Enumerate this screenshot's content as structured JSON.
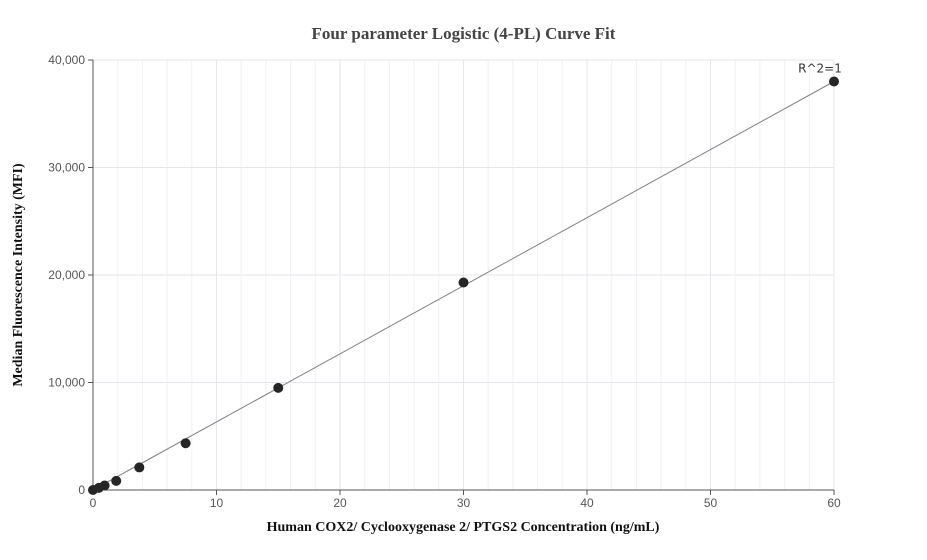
{
  "chart_data": {
    "type": "scatter",
    "title": "Four parameter Logistic (4-PL) Curve Fit",
    "xlabel": "Human COX2/ Cyclooxygenase 2/ PTGS2 Concentration (ng/mL)",
    "ylabel": "Median Fluorescence Intensity (MFI)",
    "xlim": [
      0,
      60
    ],
    "ylim": [
      0,
      40000
    ],
    "x_ticks": [
      0,
      10,
      20,
      30,
      40,
      50,
      60
    ],
    "y_ticks": [
      0,
      10000,
      20000,
      30000,
      40000
    ],
    "x_tick_labels": [
      "0",
      "10",
      "20",
      "30",
      "40",
      "50",
      "60"
    ],
    "y_tick_labels": [
      "0",
      "10,000",
      "20,000",
      "30,000",
      "40,000"
    ],
    "grid": true,
    "points": [
      {
        "x": 0,
        "y": 0
      },
      {
        "x": 0.47,
        "y": 200
      },
      {
        "x": 0.94,
        "y": 420
      },
      {
        "x": 1.88,
        "y": 850
      },
      {
        "x": 3.75,
        "y": 2100
      },
      {
        "x": 7.5,
        "y": 4350
      },
      {
        "x": 15,
        "y": 9500
      },
      {
        "x": 30,
        "y": 19300
      },
      {
        "x": 60,
        "y": 38000
      }
    ],
    "curve": [
      {
        "x": 0,
        "y": 0
      },
      {
        "x": 60,
        "y": 38000
      }
    ],
    "annotation": {
      "text": "R^2=1",
      "x": 60,
      "y": 38000
    },
    "colors": {
      "point": "#262626",
      "curve": "#808080",
      "grid": "#e6e6ee",
      "axis": "#555555"
    }
  }
}
